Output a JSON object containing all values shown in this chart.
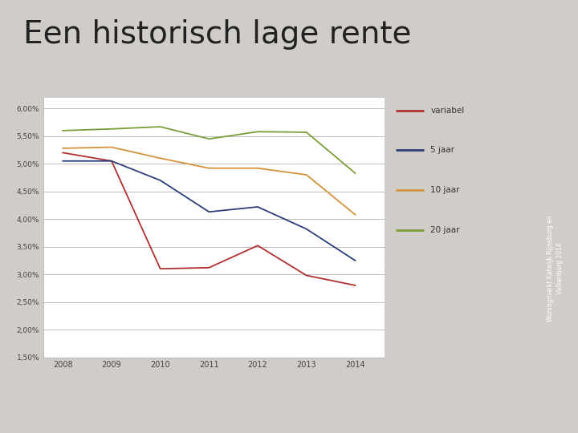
{
  "title": "Een historisch lage rente",
  "title_fontsize": 28,
  "sidebar_text": "Woningmarkt Katwijk Rijnsburg en\nValkenburg 2014",
  "sidebar_color": "#c0392b",
  "years": [
    2008,
    2009,
    2010,
    2011,
    2012,
    2013,
    2014
  ],
  "series": {
    "variabel": {
      "color": "#b03030",
      "values": [
        5.2,
        5.05,
        3.1,
        3.12,
        3.52,
        2.98,
        2.8
      ]
    },
    "5 jaar": {
      "color": "#2c3e7a",
      "values": [
        5.05,
        5.05,
        4.7,
        4.13,
        4.22,
        3.82,
        3.25
      ]
    },
    "10 jaar": {
      "color": "#d4923a",
      "values": [
        5.28,
        5.3,
        5.1,
        4.92,
        4.92,
        4.8,
        4.08
      ]
    },
    "20 jaar": {
      "color": "#7a9e3a",
      "values": [
        5.6,
        5.63,
        5.67,
        5.45,
        5.58,
        5.57,
        4.83
      ]
    }
  },
  "ylim_low": 0.015,
  "ylim_high": 0.062,
  "yticks": [
    0.015,
    0.02,
    0.025,
    0.03,
    0.035,
    0.04,
    0.045,
    0.05,
    0.055,
    0.06
  ],
  "ytick_labels": [
    "1,50%",
    "2,00%",
    "2,50%",
    "3,00%",
    "3,50%",
    "4,00%",
    "4,50%",
    "5,00%",
    "5,50%",
    "6,00%"
  ],
  "slide_bg": "#d0cdc8",
  "chart_bg": "#f0eeea",
  "plot_bg": "#ffffff",
  "grid_color": "#bbbbbb",
  "legend_labels": [
    "variabel",
    "5 jaar",
    "10 jaar",
    "20 jaar"
  ],
  "legend_colors": [
    "#b03030",
    "#2c3e7a",
    "#d4923a",
    "#7a9e3a"
  ]
}
